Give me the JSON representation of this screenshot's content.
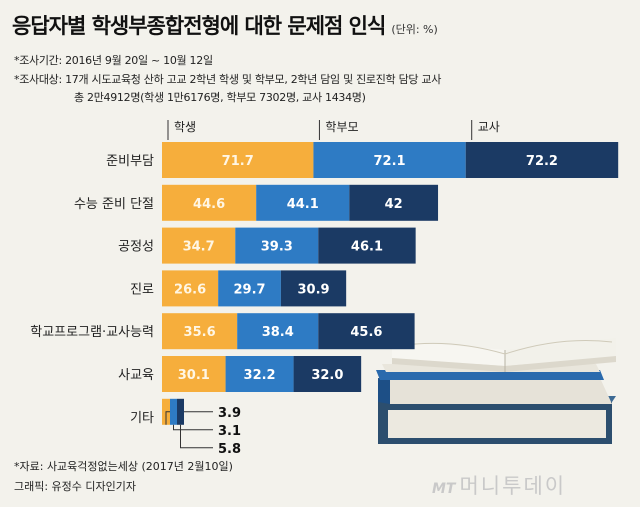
{
  "header": {
    "title": "응답자별 학생부종합전형에 대한 문제점 인식",
    "unit": "(단위: %)",
    "period": "*조사기간: 2016년 9월 20일 ~ 10월 12일",
    "target_line1": "*조사대상: 17개 시도교육청 산하 고교 2학년 학생 및 학부모, 2학년 담임 및 진로진학 담당 교사",
    "target_line2": "총 2만4912명(학생 1만6176명, 학부모 7302명, 교사 1434명)"
  },
  "chart_data": {
    "type": "bar",
    "orientation": "horizontal",
    "stacked": true,
    "categories": [
      "준비부담",
      "수능 준비 단절",
      "공정성",
      "진로",
      "학교프로그램·교사능력",
      "사교육",
      "기타"
    ],
    "series": [
      {
        "name": "학생",
        "color": "#f6ae3c",
        "values": [
          71.7,
          44.6,
          34.7,
          26.6,
          35.6,
          30.1,
          3.9
        ]
      },
      {
        "name": "학부모",
        "color": "#2e7bc4",
        "values": [
          72.1,
          44.1,
          39.3,
          29.7,
          38.4,
          32.2,
          3.1
        ]
      },
      {
        "name": "교사",
        "color": "#1b3a64",
        "values": [
          72.2,
          42,
          46.1,
          30.9,
          45.6,
          32.0,
          5.8
        ]
      }
    ],
    "value_labels": [
      [
        "71.7",
        "72.1",
        "72.2"
      ],
      [
        "44.6",
        "44.1",
        "42"
      ],
      [
        "34.7",
        "39.3",
        "46.1"
      ],
      [
        "26.6",
        "29.7",
        "30.9"
      ],
      [
        "35.6",
        "38.4",
        "45.6"
      ],
      [
        "30.1",
        "32.2",
        "32.0"
      ],
      [
        "3.9",
        "3.1",
        "5.8"
      ]
    ],
    "legend": [
      "학생",
      "학부모",
      "교사"
    ],
    "legend_placement": "top"
  },
  "footer": {
    "source": "*자료: 사교육걱정없는세상 (2017년 2월10일)",
    "credit": "그래픽: 유정수 디자인기자"
  },
  "logo": {
    "mt": "MT",
    "name": "머니투데이"
  }
}
